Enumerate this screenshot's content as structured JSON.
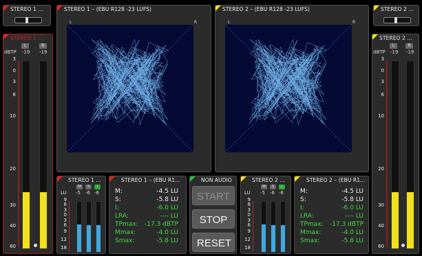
{
  "stereo1_small": {
    "title": "STEREO 1 ..."
  },
  "stereo2_small": {
    "title": "STEREO 2 ..."
  },
  "left_meter": {
    "title": "STEREO 1 ...",
    "unit": "dBTP",
    "left_label": "L",
    "right_label": "R",
    "left_peak": "-19",
    "right_peak": "-19",
    "left_level": 0.3,
    "right_level": 0.3
  },
  "right_meter": {
    "title": "STEREO 2 ...",
    "unit": "dBTP",
    "left_label": "L",
    "right_label": "R",
    "left_peak": "-19",
    "right_peak": "-19",
    "left_level": 0.3,
    "right_level": 0.3
  },
  "meter_scale": [
    "3",
    "0",
    "3",
    "6",
    "10",
    "20",
    "30",
    "40",
    "60"
  ],
  "scope1": {
    "title": "STEREO 1 – (EBU R128 -23 LUFS)",
    "left": "L",
    "right": "R"
  },
  "scope2": {
    "title": "STEREO 2 – (EBU R128 -23 LUFS)",
    "left": "L",
    "right": "R"
  },
  "lu_meter1": {
    "title": "STEREO 1 ...",
    "unit": "LU",
    "btn_m": "M",
    "btn_s": "S",
    "btn_i": "I",
    "m": "-5",
    "s": "-6",
    "i": "-6",
    "scale": [
      "9",
      "6",
      "3",
      "0",
      "3",
      "6",
      "9",
      "12",
      "18"
    ]
  },
  "lu_meter2": {
    "title": "STEREO 2 ...",
    "unit": "LU",
    "btn_m": "M",
    "btn_s": "S",
    "btn_i": "I",
    "m": "-5",
    "s": "-6",
    "i": "-6",
    "scale": [
      "9",
      "6",
      "3",
      "0",
      "3",
      "6",
      "9",
      "12",
      "18"
    ]
  },
  "loudness1": {
    "title": "STEREO 1 – (EBU R1...",
    "rows": [
      {
        "k": "M:",
        "v": "-4.5 LU",
        "color": "white"
      },
      {
        "k": "S:",
        "v": "-5.8 LU",
        "color": "white"
      },
      {
        "k": "I:",
        "v": "-6.0 LU",
        "color": "green"
      },
      {
        "k": "LRA:",
        "v": "---- LU",
        "color": "green"
      },
      {
        "k": "TPmax:",
        "v": "-17.3 dBTP",
        "color": "green"
      },
      {
        "k": "Mmax:",
        "v": "-4.0 LU",
        "color": "green"
      },
      {
        "k": "Smax:",
        "v": "-5.8 LU",
        "color": "green"
      }
    ]
  },
  "loudness2": {
    "title": "STEREO 2 – (EBU R1...",
    "rows": [
      {
        "k": "M:",
        "v": "-4.5 LU",
        "color": "white"
      },
      {
        "k": "S:",
        "v": "-5.8 LU",
        "color": "white"
      },
      {
        "k": "I:",
        "v": "-6.0 LU",
        "color": "green"
      },
      {
        "k": "LRA:",
        "v": "---- LU",
        "color": "green"
      },
      {
        "k": "TPmax:",
        "v": "-17.3 dBTP",
        "color": "green"
      },
      {
        "k": "Mmax:",
        "v": "-4.0 LU",
        "color": "green"
      },
      {
        "k": "Smax:",
        "v": "-5.8 LU",
        "color": "green"
      }
    ]
  },
  "control": {
    "title": "NON AUDIO",
    "start": "START",
    "stop": "STOP",
    "reset": "RESET"
  },
  "colors": {
    "flag_red": "#e02020",
    "flag_yellow": "#f0e020",
    "flag_green": "#22c040",
    "meter_fill": "#f0e020",
    "lu_fill": "#40a8e0",
    "scope_bg": "#050a35",
    "trace": "#7fc8ff"
  }
}
